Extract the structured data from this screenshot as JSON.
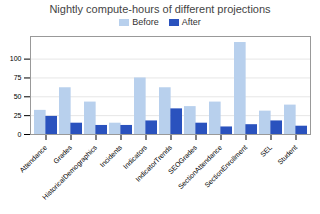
{
  "chart_data": {
    "type": "bar",
    "title": "Nightly compute-hours of different projections",
    "categories": [
      "Attendance",
      "Grades",
      "HistoricalDemographics",
      "Incidents",
      "Indicators",
      "IndicatorTrends",
      "SEOGrades",
      "SectionAttendance",
      "SectionEnrollment",
      "SEL",
      "Student"
    ],
    "series": [
      {
        "name": "Before",
        "color": "#b8d0ed",
        "values": [
          32,
          62,
          43,
          15,
          75,
          62,
          37,
          43,
          122,
          31,
          39
        ]
      },
      {
        "name": "After",
        "color": "#2a52be",
        "values": [
          24,
          15,
          12,
          12,
          18,
          34,
          15,
          10,
          13,
          18,
          11
        ]
      }
    ],
    "ylim": [
      0,
      130
    ],
    "yticks": [
      0,
      25,
      50,
      75,
      100
    ],
    "grid": true,
    "legend": "top"
  }
}
